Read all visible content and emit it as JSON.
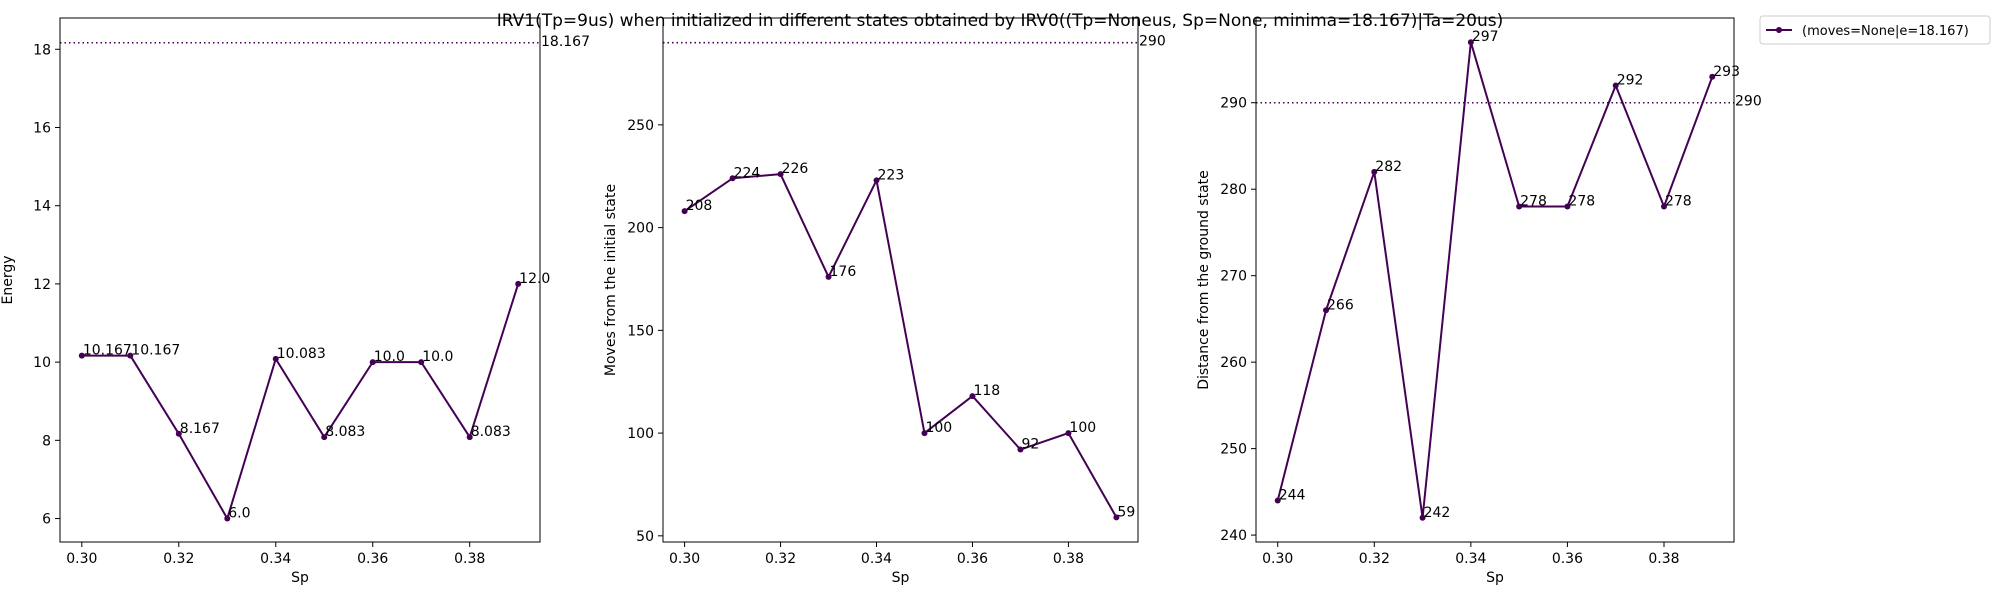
{
  "figure": {
    "suptitle": "IRV1(Tp=9us) when initialized in different states obtained by IRV0((Tp=Noneus, Sp=None, minima=18.167)|Ta=20us)",
    "legend": {
      "label": "(moves=None|e=18.167)",
      "placement": "top-right outside"
    },
    "series_color": "#440154"
  },
  "chart_data": [
    {
      "type": "line",
      "title": "",
      "xlabel": "Sp",
      "ylabel": "Energy",
      "x": [
        0.3,
        0.31,
        0.32,
        0.33,
        0.34,
        0.35,
        0.36,
        0.37,
        0.38,
        0.39
      ],
      "y": [
        10.167,
        10.167,
        8.167,
        6.0,
        10.083,
        8.083,
        10.0,
        10.0,
        8.083,
        12.0
      ],
      "point_labels": [
        "10.167",
        "10.167",
        "8.167",
        "6.0",
        "10.083",
        "8.083",
        "10.0",
        "10.0",
        "8.083",
        "12.0"
      ],
      "hline": {
        "y": 18.167,
        "label": "18.167",
        "style": "dotted"
      },
      "xlim": [
        0.2955,
        0.3945
      ],
      "ylim": [
        5.4,
        18.8
      ],
      "xticks": [
        0.3,
        0.32,
        0.34,
        0.36,
        0.38
      ],
      "xtick_labels": [
        "0.30",
        "0.32",
        "0.34",
        "0.36",
        "0.38"
      ],
      "yticks": [
        6,
        8,
        10,
        12,
        14,
        16,
        18
      ],
      "ytick_labels": [
        "6",
        "8",
        "10",
        "12",
        "14",
        "16",
        "18"
      ],
      "grid": false
    },
    {
      "type": "line",
      "title": "",
      "xlabel": "Sp",
      "ylabel": "Moves from the initial state",
      "x": [
        0.3,
        0.31,
        0.32,
        0.33,
        0.34,
        0.35,
        0.36,
        0.37,
        0.38,
        0.39
      ],
      "y": [
        208,
        224,
        226,
        176,
        223,
        100,
        118,
        92,
        100,
        59
      ],
      "point_labels": [
        "208",
        "224",
        "226",
        "176",
        "223",
        "100",
        "118",
        "92",
        "100",
        "59"
      ],
      "hline": {
        "y": 290,
        "label": "290",
        "style": "dotted"
      },
      "xlim": [
        0.2955,
        0.3945
      ],
      "ylim": [
        47,
        302
      ],
      "xticks": [
        0.3,
        0.32,
        0.34,
        0.36,
        0.38
      ],
      "xtick_labels": [
        "0.30",
        "0.32",
        "0.34",
        "0.36",
        "0.38"
      ],
      "yticks": [
        50,
        100,
        150,
        200,
        250
      ],
      "ytick_labels": [
        "50",
        "100",
        "150",
        "200",
        "250"
      ],
      "grid": false
    },
    {
      "type": "line",
      "title": "",
      "xlabel": "Sp",
      "ylabel": "Distance from the ground state",
      "x": [
        0.3,
        0.31,
        0.32,
        0.33,
        0.34,
        0.35,
        0.36,
        0.37,
        0.38,
        0.39
      ],
      "y": [
        244,
        266,
        282,
        242,
        297,
        278,
        278,
        292,
        278,
        293
      ],
      "point_labels": [
        "244",
        "266",
        "282",
        "242",
        "297",
        "278",
        "278",
        "292",
        "278",
        "293"
      ],
      "hline": {
        "y": 290,
        "label": "290",
        "style": "dotted"
      },
      "xlim": [
        0.2955,
        0.3945
      ],
      "ylim": [
        239.2,
        299.8
      ],
      "xticks": [
        0.3,
        0.32,
        0.34,
        0.36,
        0.38
      ],
      "xtick_labels": [
        "0.30",
        "0.32",
        "0.34",
        "0.36",
        "0.38"
      ],
      "yticks": [
        240,
        250,
        260,
        270,
        280,
        290
      ],
      "ytick_labels": [
        "240",
        "250",
        "260",
        "270",
        "280",
        "290"
      ],
      "grid": false
    }
  ]
}
